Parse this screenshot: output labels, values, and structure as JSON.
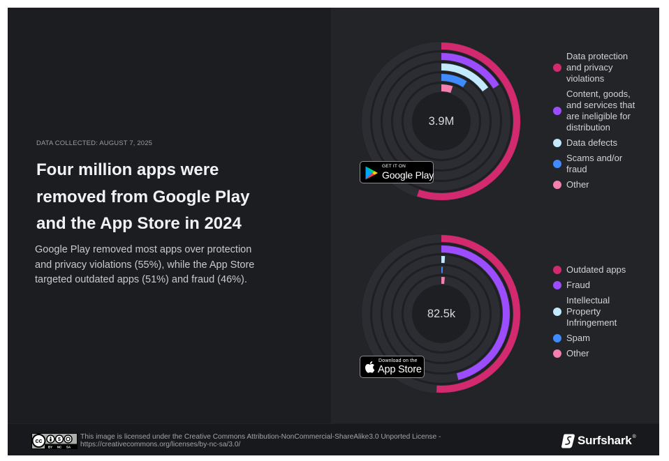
{
  "header": {
    "date_label": "DATA COLLECTED: AUGUST 7, 2025",
    "title": "Four million apps were\nremoved from Google Play\nand the App Store in 2024",
    "description": "Google Play removed most apps over protection\nand privacy violations (55%), while the App Store\ntargeted outdated apps (51%) and fraud (46%)."
  },
  "chart_data": [
    {
      "type": "radial-bar",
      "store": "Google Play",
      "center_label": "3.9M",
      "badge": {
        "small": "GET IT ON",
        "large": "Google Play"
      },
      "unit": "%",
      "range": [
        0,
        100
      ],
      "categories": [
        "Data protection\nand privacy\nviolations",
        "Content, goods,\nand services that\nare ineligible for\ndistribution",
        "Data defects",
        "Scams and/or\nfraud",
        "Other"
      ],
      "values": [
        55,
        16,
        15,
        9,
        5
      ],
      "colors": [
        "#d2296f",
        "#9b4dff",
        "#c3e9ff",
        "#3f8bff",
        "#f57fb0"
      ],
      "legend_position": "right"
    },
    {
      "type": "radial-bar",
      "store": "App Store",
      "center_label": "82.5k",
      "badge": {
        "small": "Download on the",
        "large": "App Store"
      },
      "unit": "%",
      "range": [
        0,
        100
      ],
      "categories": [
        "Outdated apps",
        "Fraud",
        "Intellectual\nProperty\nInfringement",
        "Spam",
        "Other"
      ],
      "values": [
        51,
        46,
        1,
        0.5,
        1.5
      ],
      "colors": [
        "#d2296f",
        "#9b4dff",
        "#c3e9ff",
        "#3f8bff",
        "#f57fb0"
      ],
      "legend_position": "right"
    }
  ],
  "footer": {
    "license_text": "This image is licensed under the Creative Commons Attribution-NonCommercial-ShareAlike3.0 Unported License -",
    "license_url": "https://creativecommons.org/licenses/by-nc-sa/3.0/",
    "cc_badge": {
      "cc": "cc",
      "by": "BY",
      "nc": "NC",
      "sa": "SA"
    },
    "brand": "Surfshark",
    "brand_mark": "®"
  },
  "colors": {
    "left_panel": "#1c1d21",
    "right_panel": "#232428",
    "ring_track": "#2c2d32",
    "ring_gap": "#1e1f23"
  }
}
